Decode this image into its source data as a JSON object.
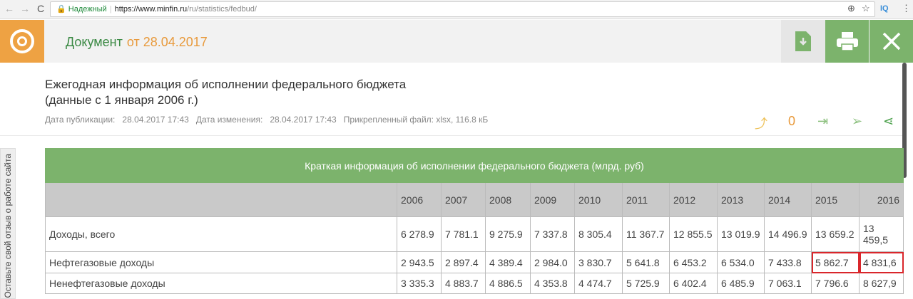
{
  "browser": {
    "secure_label": "Надежный",
    "url_domain": "https://www.minfin.ru",
    "url_path": "/ru/statistics/fedbud/",
    "ext": "IQ"
  },
  "header": {
    "doc_label": "Документ",
    "doc_date": "от 28.04.2017"
  },
  "page": {
    "title_line1": "Ежегодная информация об исполнении федерального бюджета",
    "title_line2": "(данные с 1 января 2006 г.)",
    "pub_label": "Дата публикации:",
    "pub_value": "28.04.2017 17:43",
    "mod_label": "Дата изменения:",
    "mod_value": "28.04.2017 17:43",
    "file": "Прикрепленный файл: xlsx, 116.8 кБ",
    "counter": "0"
  },
  "feedback": "Оставьте свой отзыв о работе сайта",
  "table": {
    "caption": "Краткая информация об исполнении федерального бюджета (млрд. руб)",
    "years": [
      "2006",
      "2007",
      "2008",
      "2009",
      "2010",
      "2011",
      "2012",
      "2013",
      "2014",
      "2015",
      "2016"
    ],
    "rows": [
      {
        "label": "Доходы, всего",
        "values": [
          "6 278.9",
          "7 781.1",
          "9 275.9",
          "7 337.8",
          "8 305.4",
          "11 367.7",
          "12 855.5",
          "13 019.9",
          "14 496.9",
          "13 659.2",
          "13 459,5"
        ]
      },
      {
        "label": "Нефтегазовые доходы",
        "values": [
          "2 943.5",
          "2 897.4",
          "4 389.4",
          "2 984.0",
          "3 830.7",
          "5 641.8",
          "6 453.2",
          "6 534.0",
          "7 433.8",
          "5 862.7",
          "4 831,6"
        ]
      },
      {
        "label": "Ненефтегазовые доходы",
        "values": [
          "3 335.3",
          "4 883.7",
          "4 886.5",
          "4 353.8",
          "4 474.7",
          "5 725.9",
          "6 402.4",
          "6 485.9",
          "7 063.1",
          "7 796.6",
          "8 627,9"
        ]
      }
    ]
  },
  "colors": {
    "green": "#7cb36c",
    "orange": "#eea243",
    "highlight": "#d9262b"
  }
}
